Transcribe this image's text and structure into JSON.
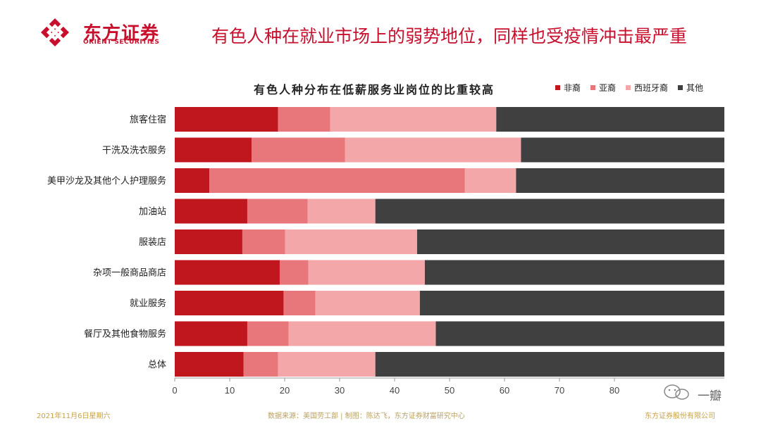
{
  "brand": {
    "name_cn": "东方证券",
    "name_en": "ORIENT SECURITIES"
  },
  "headline": "有色人种在就业市场上的弱势地位，同样也受疫情冲击最严重",
  "chart_data": {
    "type": "bar",
    "orientation": "horizontal",
    "stacked": true,
    "title": "有色人种分布在低薪服务业岗位的比重较高",
    "legend_position": "top-right",
    "categories": [
      "旅客住宿",
      "干洗及洗衣服务",
      "美甲沙龙及其他个人护理服务",
      "加油站",
      "服装店",
      "杂项一般商品商店",
      "就业服务",
      "餐厅及其他食物服务",
      "总体"
    ],
    "series": [
      {
        "name": "非裔",
        "color": "#c0171f",
        "values": [
          18.8,
          14.0,
          6.3,
          13.2,
          12.3,
          19.1,
          19.8,
          13.2,
          12.5
        ]
      },
      {
        "name": "亚裔",
        "color": "#e8777b",
        "values": [
          9.5,
          17.0,
          46.5,
          11.0,
          7.8,
          5.2,
          5.8,
          7.5,
          6.3
        ]
      },
      {
        "name": "西班牙裔",
        "color": "#f3a7a9",
        "values": [
          30.2,
          32.0,
          9.3,
          12.3,
          24.0,
          21.2,
          19.0,
          26.8,
          17.7
        ]
      },
      {
        "name": "其他",
        "color": "#404040",
        "values": [
          41.5,
          37.0,
          37.9,
          63.5,
          55.9,
          54.5,
          55.4,
          52.5,
          63.5
        ]
      }
    ],
    "xlim": [
      0,
      100
    ],
    "xticks": [
      0,
      10,
      20,
      30,
      40,
      50,
      60,
      70,
      80
    ],
    "grid": false
  },
  "footer": {
    "date": "2021年11月6日星期六",
    "source": "数据来源：美国劳工部 | 制图：陈达飞，东方证券财富研究中心",
    "company": "东方证券股份有限公司"
  },
  "watermark": "一瓣"
}
